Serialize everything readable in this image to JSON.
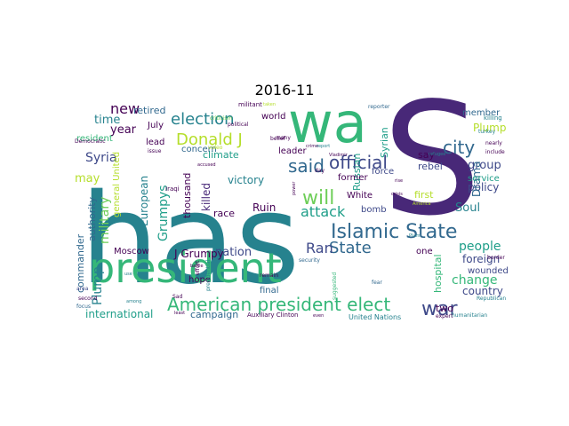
{
  "title": "2016-11",
  "palette": [
    "#440154",
    "#482878",
    "#3e4989",
    "#31688e",
    "#26828e",
    "#1f9e89",
    "#35b779",
    "#6ece58",
    "#b5de2b",
    "#fde725"
  ],
  "words": [
    {
      "t": "has",
      "c": "#26828e"
    },
    {
      "t": "S",
      "c": "#482878"
    },
    {
      "t": "wa",
      "c": "#35b779"
    },
    {
      "t": "president",
      "c": "#35b779"
    },
    {
      "t": "Islamic State",
      "c": "#31688e"
    },
    {
      "t": "American president elect",
      "c": "#35b779"
    },
    {
      "t": "official",
      "c": "#3e4989"
    },
    {
      "t": "Donald J",
      "c": "#b5de2b"
    },
    {
      "t": "election",
      "c": "#26828e"
    },
    {
      "t": "city",
      "c": "#31688e"
    },
    {
      "t": "said",
      "c": "#31688e"
    },
    {
      "t": "will",
      "c": "#6ece58"
    },
    {
      "t": "State",
      "c": "#31688e"
    },
    {
      "t": "war",
      "c": "#3e4989"
    },
    {
      "t": "people",
      "c": "#1f9e89"
    },
    {
      "t": "attack",
      "c": "#1f9e89"
    },
    {
      "t": "Ran",
      "c": "#3e4989"
    },
    {
      "t": "military",
      "c": "#6ece58"
    },
    {
      "t": "Plump",
      "c": "#26828e"
    },
    {
      "t": "Grumpys",
      "c": "#1f9e89"
    },
    {
      "t": "new",
      "c": "#440154"
    },
    {
      "t": "retired",
      "c": "#31688e"
    },
    {
      "t": "year",
      "c": "#440154"
    },
    {
      "t": "time",
      "c": "#26828e"
    },
    {
      "t": "Syria",
      "c": "#3e4989"
    },
    {
      "t": "may",
      "c": "#b5de2b"
    },
    {
      "t": "victory",
      "c": "#26828e"
    },
    {
      "t": "nation",
      "c": "#3e4989"
    },
    {
      "t": "change",
      "c": "#35b779"
    },
    {
      "t": "group",
      "c": "#3e4989"
    },
    {
      "t": "policy",
      "c": "#3e4989"
    },
    {
      "t": "Soul",
      "c": "#26828e"
    },
    {
      "t": "Drama",
      "c": "#31688e"
    },
    {
      "t": "foreign",
      "c": "#3e4989"
    },
    {
      "t": "country",
      "c": "#3e4989"
    },
    {
      "t": "Russian",
      "c": "#1f9e89"
    },
    {
      "t": "Syrian",
      "c": "#1f9e89"
    },
    {
      "t": "rebel",
      "c": "#3e4989"
    },
    {
      "t": "say",
      "c": "#440154"
    },
    {
      "t": "Plump",
      "c": "#b5de2b"
    },
    {
      "t": "service",
      "c": "#1f9e89"
    },
    {
      "t": "international",
      "c": "#1f9e89"
    },
    {
      "t": "campaign",
      "c": "#31688e"
    },
    {
      "t": "hospital",
      "c": "#35b779"
    },
    {
      "t": "wounded",
      "c": "#3e4989"
    },
    {
      "t": "general United",
      "c": "#b5de2b"
    },
    {
      "t": "authority",
      "c": "#31688e"
    },
    {
      "t": "commander",
      "c": "#31688e"
    },
    {
      "t": "European",
      "c": "#26828e"
    },
    {
      "t": "thousand",
      "c": "#440154"
    },
    {
      "t": "killed",
      "c": "#482878"
    },
    {
      "t": "race",
      "c": "#440154"
    },
    {
      "t": "Moscow",
      "c": "#440154"
    },
    {
      "t": "resident",
      "c": "#35b779"
    },
    {
      "t": "J Grumpy",
      "c": "#440154"
    },
    {
      "t": "hope",
      "c": "#440154"
    },
    {
      "t": "Ruin",
      "c": "#440154"
    },
    {
      "t": "final",
      "c": "#31688e"
    },
    {
      "t": "first",
      "c": "#b5de2b"
    },
    {
      "t": "two",
      "c": "#440154"
    },
    {
      "t": "one",
      "c": "#440154"
    },
    {
      "t": "former",
      "c": "#440154"
    },
    {
      "t": "force",
      "c": "#3e4989"
    },
    {
      "t": "White",
      "c": "#440154"
    },
    {
      "t": "bomb",
      "c": "#3e4989"
    },
    {
      "t": "leader",
      "c": "#440154"
    },
    {
      "t": "world",
      "c": "#440154"
    },
    {
      "t": "climate",
      "c": "#1f9e89"
    },
    {
      "t": "concern",
      "c": "#31688e"
    },
    {
      "t": "lead",
      "c": "#440154"
    },
    {
      "t": "July",
      "c": "#440154"
    },
    {
      "t": "member",
      "c": "#31688e"
    },
    {
      "t": "United Nations",
      "c": "#26828e"
    },
    {
      "t": "Auxiliary Clinton",
      "c": "#440154"
    },
    {
      "t": "killing",
      "c": "#26828e"
    },
    {
      "t": "Iraqi",
      "c": "#440154"
    },
    {
      "t": "militant",
      "c": "#440154"
    },
    {
      "t": "reporter",
      "c": "#31688e"
    },
    {
      "t": "criticism",
      "c": "#6ece58"
    },
    {
      "t": "political",
      "c": "#440154"
    },
    {
      "t": "belief",
      "c": "#440154"
    },
    {
      "t": "many",
      "c": "#440154"
    },
    {
      "t": "video",
      "c": "#b5de2b"
    },
    {
      "t": "effort",
      "c": "#440154"
    },
    {
      "t": "presidential",
      "c": "#26828e"
    },
    {
      "t": "remain",
      "c": "#440154"
    },
    {
      "t": "security",
      "c": "#31688e"
    },
    {
      "t": "suggested",
      "c": "#35b779"
    },
    {
      "t": "day",
      "c": "#440154"
    },
    {
      "t": "fear",
      "c": "#31688e"
    },
    {
      "t": "expert",
      "c": "#440154"
    },
    {
      "t": "humanitarian",
      "c": "#26828e"
    },
    {
      "t": "Republican",
      "c": "#26828e"
    },
    {
      "t": "border",
      "c": "#440154"
    },
    {
      "t": "include",
      "c": "#440154"
    },
    {
      "t": "turkey",
      "c": "#26828e"
    },
    {
      "t": "nearly",
      "c": "#440154"
    },
    {
      "t": "Democratic",
      "c": "#440154"
    },
    {
      "t": "issue",
      "c": "#440154"
    },
    {
      "t": "second",
      "c": "#440154"
    },
    {
      "t": "focus",
      "c": "#31688e"
    },
    {
      "t": "area",
      "c": "#3e4989"
    },
    {
      "t": "least",
      "c": "#440154"
    },
    {
      "t": "Sad",
      "c": "#440154"
    },
    {
      "t": "crime",
      "c": "#440154"
    },
    {
      "t": "report",
      "c": "#26828e"
    },
    {
      "t": "accused",
      "c": "#440154"
    },
    {
      "t": "Vladimir",
      "c": "#440154"
    },
    {
      "t": "refugee",
      "c": "#26828e"
    },
    {
      "t": "battle",
      "c": "#440154"
    },
    {
      "t": "even",
      "c": "#440154"
    },
    {
      "t": "taken",
      "c": "#b5de2b"
    },
    {
      "t": "use",
      "c": "#26828e"
    },
    {
      "t": "among",
      "c": "#26828e"
    },
    {
      "t": "power",
      "c": "#440154"
    },
    {
      "t": "rise",
      "c": "#440154"
    },
    {
      "t": "America",
      "c": "#b5de2b"
    },
    {
      "t": "crisis",
      "c": "#440154"
    },
    {
      "t": "Plum",
      "c": "#26828e"
    }
  ]
}
